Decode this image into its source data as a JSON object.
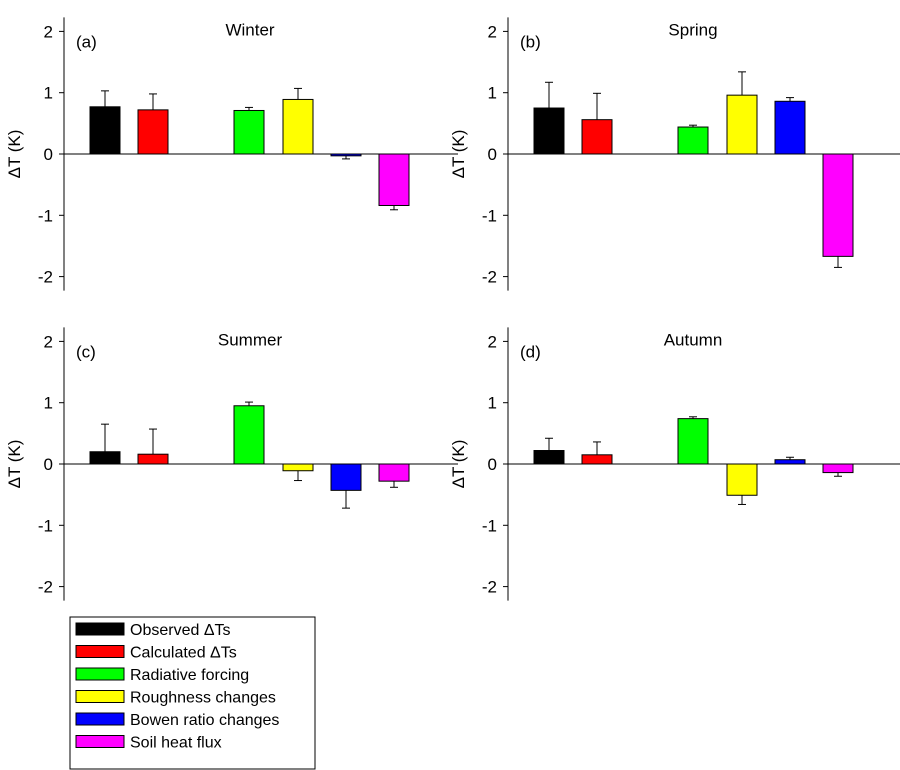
{
  "chart_data": [
    {
      "type": "bar",
      "panel_label": "(a)",
      "title": "Winter",
      "ylabel": "ΔT (K)",
      "ylim": [
        -2,
        2
      ],
      "yticks": [
        "-2",
        "-1",
        "0",
        "1",
        "2"
      ],
      "values": [
        0.77,
        0.72,
        null,
        0.71,
        0.89,
        -0.03,
        -0.84
      ],
      "errors": [
        0.26,
        0.26,
        null,
        0.05,
        0.18,
        0.05,
        0.07
      ]
    },
    {
      "type": "bar",
      "panel_label": "(b)",
      "title": "Spring",
      "ylabel": "ΔT (K)",
      "ylim": [
        -2,
        2
      ],
      "yticks": [
        "-2",
        "-1",
        "0",
        "1",
        "2"
      ],
      "values": [
        0.75,
        0.56,
        null,
        0.44,
        0.96,
        0.86,
        -1.67
      ],
      "errors": [
        0.42,
        0.43,
        null,
        0.03,
        0.38,
        0.06,
        0.18
      ]
    },
    {
      "type": "bar",
      "panel_label": "(c)",
      "title": "Summer",
      "ylabel": "ΔT (K)",
      "ylim": [
        -2,
        2
      ],
      "yticks": [
        "-2",
        "-1",
        "0",
        "1",
        "2"
      ],
      "values": [
        0.2,
        0.16,
        null,
        0.95,
        -0.11,
        -0.43,
        -0.28
      ],
      "errors": [
        0.45,
        0.41,
        null,
        0.06,
        0.16,
        0.29,
        0.1
      ]
    },
    {
      "type": "bar",
      "panel_label": "(d)",
      "title": "Autumn",
      "ylabel": "ΔT (K)",
      "ylim": [
        -2,
        2
      ],
      "yticks": [
        "-2",
        "-1",
        "0",
        "1",
        "2"
      ],
      "values": [
        0.22,
        0.15,
        null,
        0.74,
        -0.51,
        0.07,
        -0.14
      ],
      "errors": [
        0.2,
        0.21,
        null,
        0.03,
        0.15,
        0.04,
        0.06
      ]
    }
  ],
  "legend": [
    {
      "label": "Observed ΔTs",
      "color": "#000000"
    },
    {
      "label": "Calculated  ΔTs",
      "color": "#ff0000"
    },
    {
      "label": "Radiative forcing",
      "color": "#00ff00"
    },
    {
      "label": "Roughness changes",
      "color": "#ffff00"
    },
    {
      "label": "Bowen ratio changes",
      "color": "#0000ff"
    },
    {
      "label": "Soil heat flux",
      "color": "#ff00ff"
    }
  ],
  "series_colors": [
    "#000000",
    "#ff0000",
    null,
    "#00ff00",
    "#ffff00",
    "#0000ff",
    "#ff00ff"
  ]
}
